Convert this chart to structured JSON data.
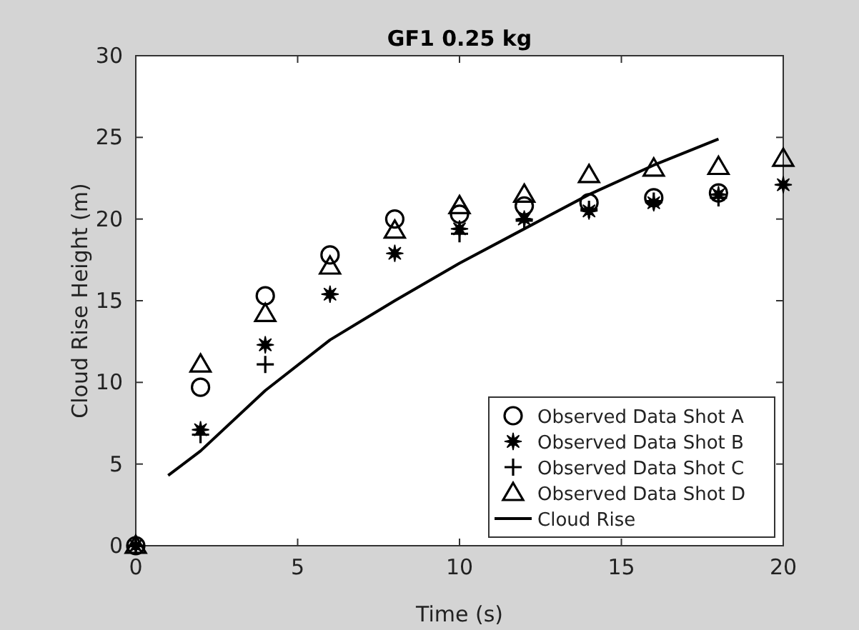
{
  "chart_data": {
    "type": "scatter",
    "title": "GF1 0.25 kg",
    "xlabel": "Time (s)",
    "ylabel": "Cloud Rise Height (m)",
    "x": [
      0,
      2,
      4,
      6,
      8,
      10,
      12,
      14,
      16,
      18,
      20
    ],
    "xlim": [
      0,
      20
    ],
    "xticks": [
      0,
      5,
      10,
      15,
      20
    ],
    "ylim": [
      0,
      30
    ],
    "yticks": [
      0,
      5,
      10,
      15,
      20,
      25,
      30
    ],
    "grid": false,
    "legend": "bottom right",
    "series": [
      {
        "name": "Observed Data Shot A",
        "color": "#000000",
        "marker": "circle",
        "values": [
          0,
          9.7,
          15.3,
          17.8,
          20,
          20.3,
          20.8,
          21,
          21.3,
          21.6,
          null
        ]
      },
      {
        "name": "Observed Data Shot B",
        "color": "#000000",
        "marker": "star",
        "values": [
          0,
          7.1,
          12.3,
          15.4,
          17.9,
          19.4,
          20,
          20.5,
          21,
          21.5,
          22.1
        ]
      },
      {
        "name": "Observed Data Shot C",
        "color": "#000000",
        "marker": "cross",
        "values": [
          0,
          6.8,
          11.1,
          null,
          null,
          19.1,
          19.9,
          20.6,
          21.1,
          21.3,
          null
        ]
      },
      {
        "name": "Observed Data Shot D",
        "color": "#000000",
        "marker": "triangle",
        "values": [
          0,
          11.1,
          14.2,
          17.1,
          19.3,
          20.8,
          21.5,
          22.7,
          23.1,
          23.2,
          23.7
        ]
      },
      {
        "name": "Cloud Rise",
        "type": "line",
        "color": "#000000",
        "marker": "none",
        "line_style": "solid",
        "x": [
          1,
          2,
          4,
          6,
          8,
          10,
          12,
          14,
          16,
          18
        ],
        "values": [
          4.3,
          5.8,
          9.5,
          12.6,
          15,
          17.3,
          19.4,
          21.5,
          23.3,
          24.9
        ]
      }
    ]
  }
}
